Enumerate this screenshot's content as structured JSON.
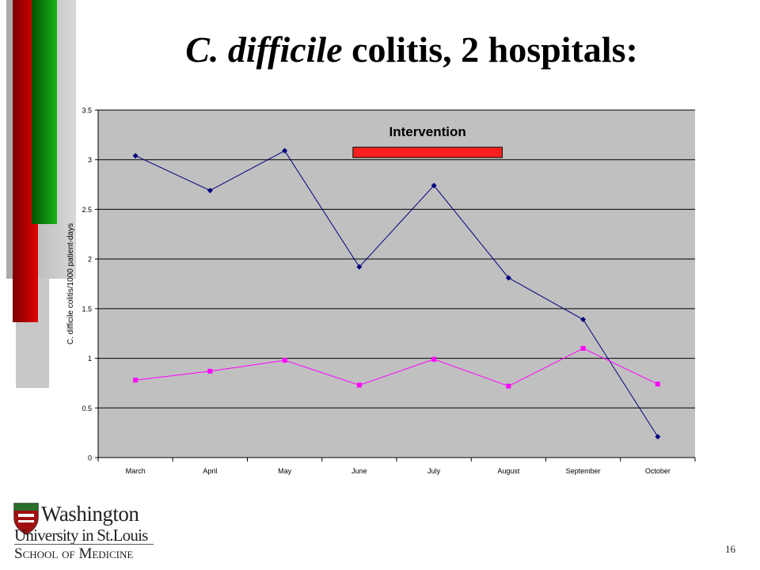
{
  "slide": {
    "title_italic": "C. difficile",
    "title_rest": " colitis, 2 hospitals:",
    "page_number": "16"
  },
  "logo": {
    "line1": "Washington",
    "line2": "University in St.Louis",
    "line3": "School of Medicine"
  },
  "colors": {
    "plot_bg": "#c0c0c0",
    "series1": "#00007f",
    "series2": "#ff00ff",
    "intervention": "#ff2020",
    "deco_red": "#cc0000",
    "deco_green": "#008000"
  },
  "chart_data": {
    "type": "line",
    "ylabel": "C. difficile colitis/1000 patient-days",
    "xlabel": "",
    "ylim": [
      0,
      3.5
    ],
    "yticks": [
      "0",
      "0.5",
      "1",
      "1.5",
      "2",
      "2.5",
      "3",
      "3.5"
    ],
    "grid": true,
    "categories": [
      "March",
      "April",
      "May",
      "June",
      "July",
      "August",
      "September",
      "October"
    ],
    "series": [
      {
        "values": [
          3.04,
          2.69,
          3.09,
          1.92,
          2.74,
          1.81,
          1.39,
          0.21
        ],
        "color": "#00007f",
        "marker": "diamond"
      },
      {
        "values": [
          0.78,
          0.87,
          0.98,
          0.73,
          0.99,
          0.72,
          1.1,
          0.74
        ],
        "color": "#ff00ff",
        "marker": "square"
      }
    ],
    "annotation": {
      "text": "Intervention",
      "start_category": 3,
      "end_category": 5
    }
  }
}
